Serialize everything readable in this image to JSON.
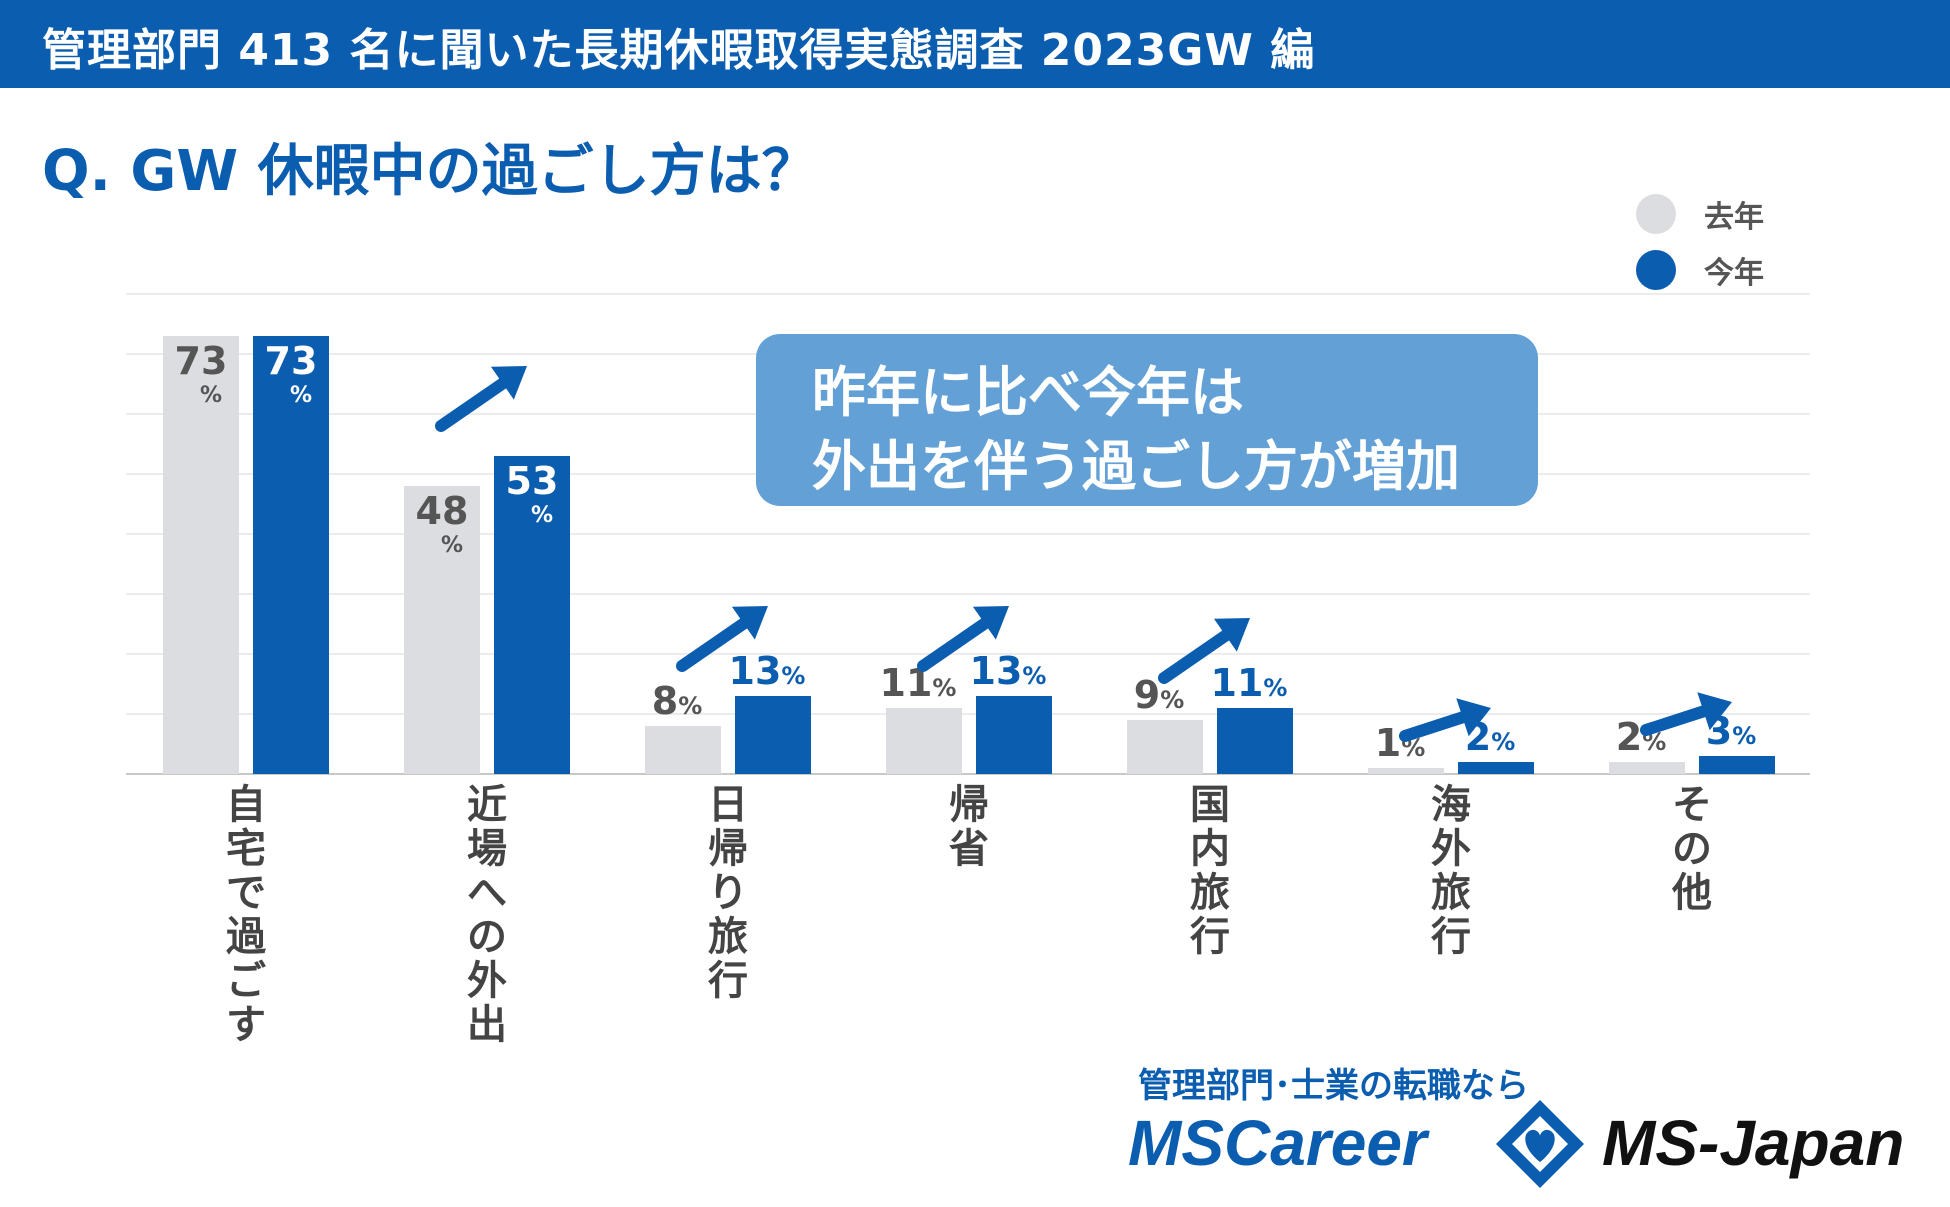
{
  "header": {
    "title": "管理部門 413 名に聞いた長期休暇取得実態調査 2023GW 編"
  },
  "question": "Q. GW 休暇中の過ごし方は？",
  "legend": {
    "items": [
      {
        "label": "去年",
        "color": "#dcdde0"
      },
      {
        "label": "今年",
        "color": "#0b5db0"
      }
    ]
  },
  "callout": {
    "line1": "昨年に比べ今年は",
    "line2": "外出を伴う過ごし方が増加"
  },
  "chart_data": {
    "type": "bar",
    "categories": [
      "自宅で過ごす",
      "近場への外出",
      "日帰り旅行",
      "帰省",
      "国内旅行",
      "海外旅行",
      "その他"
    ],
    "series": [
      {
        "name": "去年",
        "values": [
          73,
          48,
          8,
          11,
          9,
          1,
          2
        ],
        "color": "#dcdde0",
        "label_color": "#555555"
      },
      {
        "name": "今年",
        "values": [
          73,
          53,
          13,
          13,
          11,
          2,
          3
        ],
        "color": "#0b5db0",
        "label_color": "#0b5db0"
      }
    ],
    "unit": "%",
    "ylim": [
      0,
      80
    ],
    "grid": true,
    "increase_arrows": [
      false,
      true,
      true,
      true,
      true,
      true,
      true
    ],
    "arrow_color": "#0b5db0",
    "legend_position": "top-right"
  },
  "footer": {
    "tagline": "管理部門･士業の転職なら",
    "brand1": "MSCareer",
    "brand2": "MS-Japan",
    "brand_color": "#0b5db0"
  }
}
